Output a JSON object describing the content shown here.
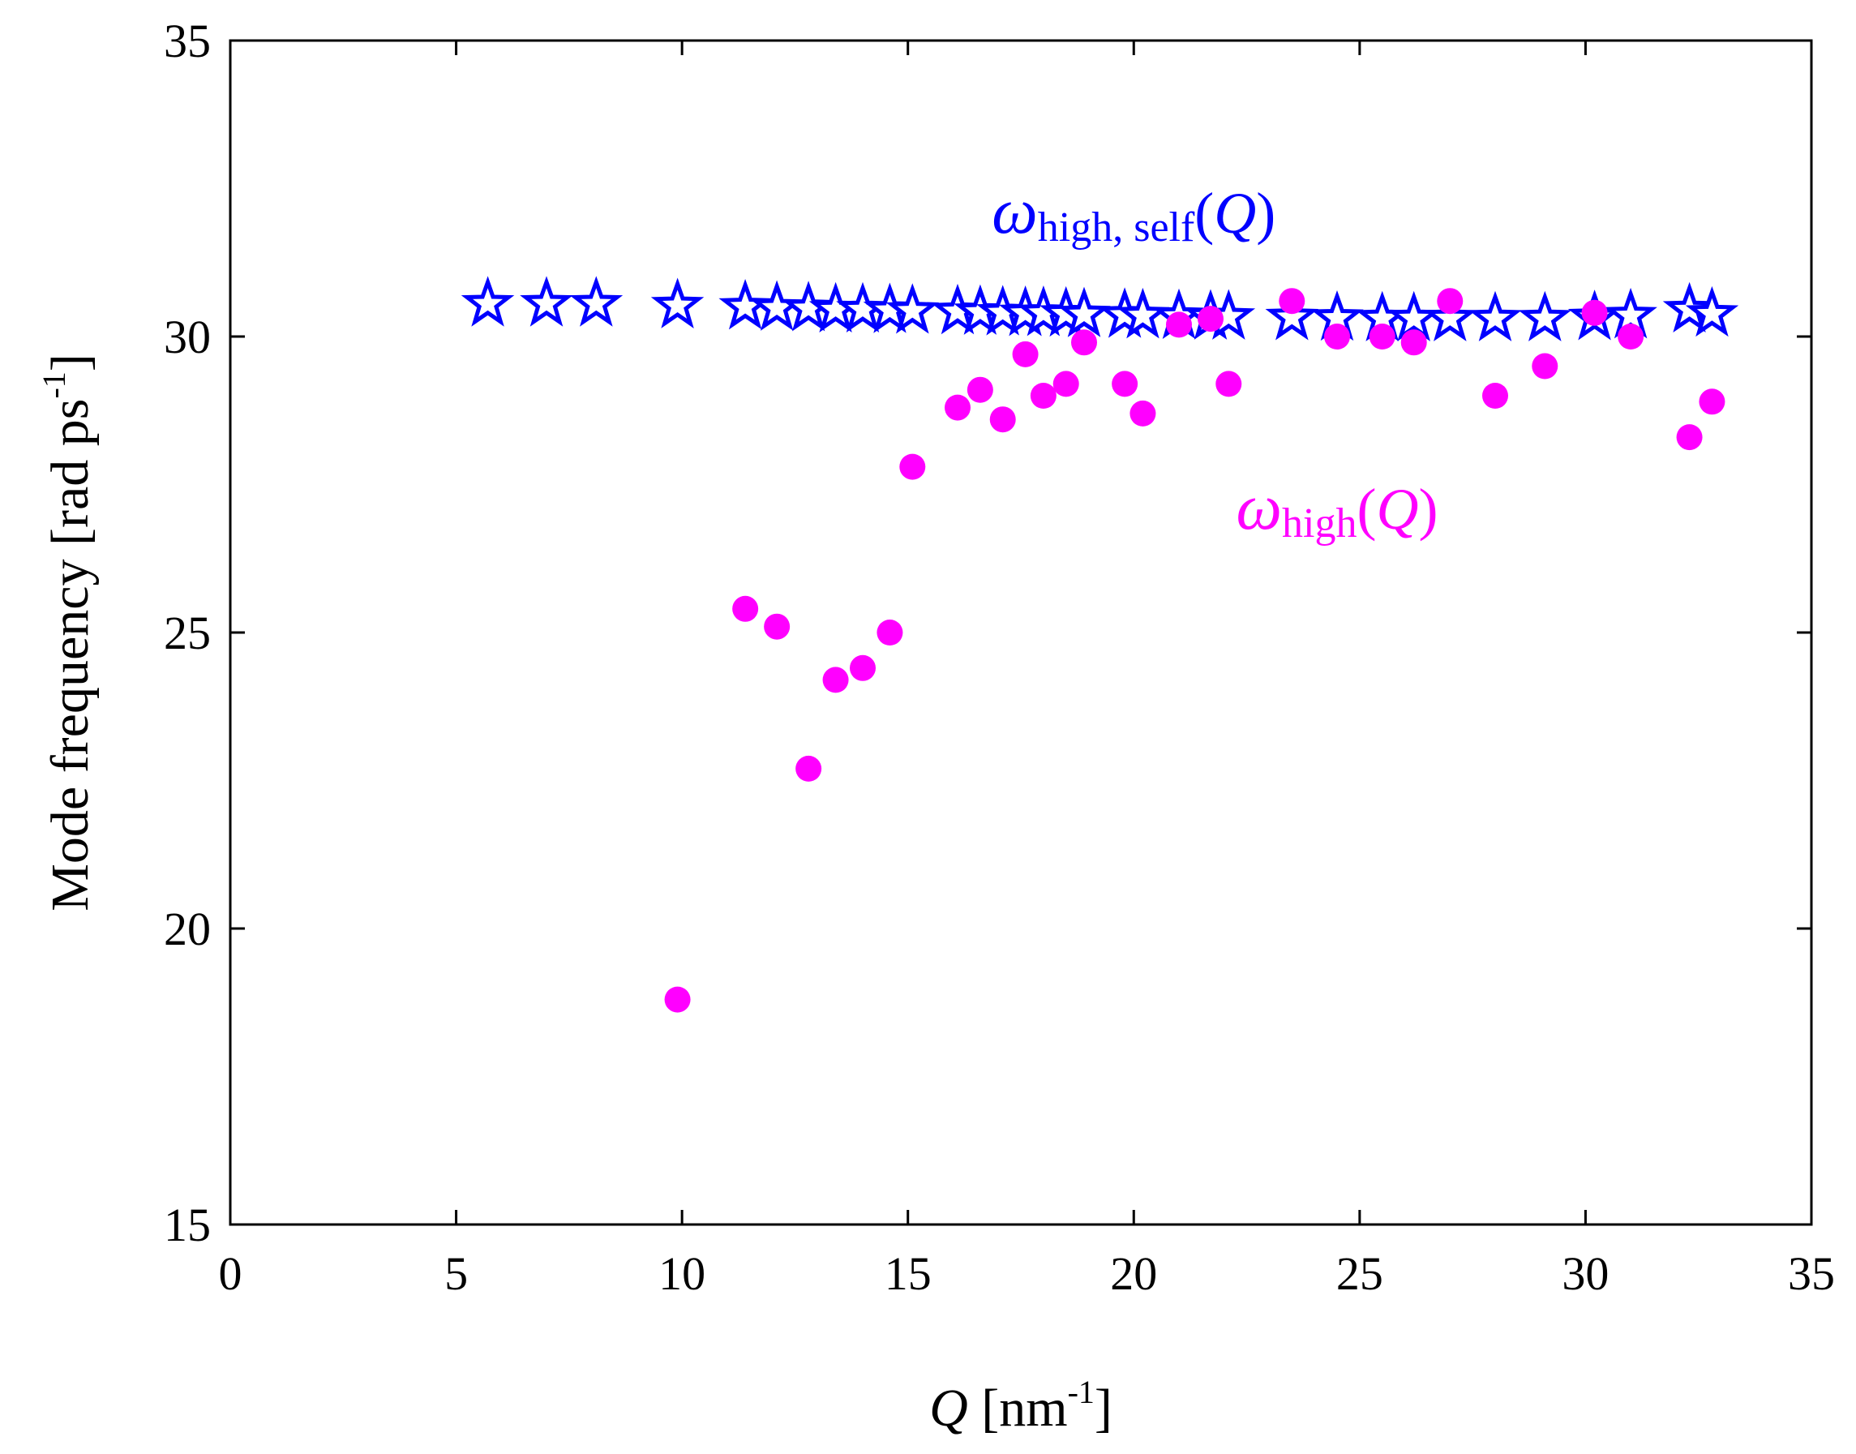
{
  "chart_data": {
    "type": "scatter",
    "title": "",
    "xlabel": {
      "var": "Q",
      "unit": "[nm",
      "exp": "-1",
      "close": "]"
    },
    "ylabel": {
      "text": "Mode frequency  [rad ps",
      "exp": "-1",
      "close": "]"
    },
    "xlim": [
      0,
      35
    ],
    "ylim": [
      15,
      35
    ],
    "xticks": [
      0,
      5,
      10,
      15,
      20,
      25,
      30,
      35
    ],
    "yticks": [
      15,
      20,
      25,
      30,
      35
    ],
    "grid": false,
    "colors": {
      "self": "#0000FF",
      "high": "#FF00FF",
      "axes": "#000000"
    },
    "series": [
      {
        "name": "omega_high_self",
        "marker": "open-star",
        "color": "#0000FF",
        "x": [
          5.7,
          7.0,
          8.1,
          9.9,
          11.4,
          12.1,
          12.8,
          13.4,
          14.0,
          14.6,
          15.1,
          16.1,
          16.6,
          17.1,
          17.6,
          18.0,
          18.5,
          18.9,
          19.8,
          20.2,
          21.0,
          21.7,
          22.1,
          23.5,
          24.5,
          25.5,
          26.2,
          27.0,
          28.0,
          29.1,
          30.2,
          31.0,
          32.3,
          32.8
        ],
        "y": [
          30.55,
          30.55,
          30.55,
          30.52,
          30.5,
          30.48,
          30.47,
          30.45,
          30.45,
          30.44,
          30.43,
          30.42,
          30.41,
          30.4,
          30.39,
          30.39,
          30.38,
          30.37,
          30.36,
          30.35,
          30.34,
          30.33,
          30.33,
          30.32,
          30.31,
          30.3,
          30.3,
          30.3,
          30.3,
          30.3,
          30.32,
          30.35,
          30.45,
          30.38
        ]
      },
      {
        "name": "omega_high",
        "marker": "filled-circle",
        "color": "#FF00FF",
        "x": [
          9.9,
          11.4,
          12.1,
          12.8,
          13.4,
          14.0,
          14.6,
          15.1,
          16.1,
          16.6,
          17.1,
          17.6,
          18.0,
          18.5,
          18.9,
          19.8,
          20.2,
          21.0,
          21.7,
          22.1,
          23.5,
          24.5,
          25.5,
          26.2,
          27.0,
          28.0,
          29.1,
          30.2,
          31.0,
          32.3,
          32.8
        ],
        "y": [
          18.8,
          25.4,
          25.1,
          22.7,
          24.2,
          24.4,
          25.0,
          27.8,
          28.8,
          29.1,
          28.6,
          29.7,
          29.0,
          29.2,
          29.9,
          29.2,
          28.7,
          30.2,
          30.3,
          29.2,
          30.6,
          30.0,
          30.0,
          29.9,
          30.6,
          29.0,
          29.5,
          30.4,
          30.0,
          28.3,
          28.9
        ]
      }
    ],
    "annotations": [
      {
        "id": "self",
        "symbol": "ω",
        "sub": "high, self",
        "arg": "(",
        "var": "Q",
        "close": ")",
        "color": "#0000FF",
        "at": [
          20.0,
          32.0
        ]
      },
      {
        "id": "high",
        "symbol": "ω",
        "sub": "high",
        "arg": "(",
        "var": "Q",
        "close": ")",
        "color": "#FF00FF",
        "at": [
          24.5,
          27.0
        ]
      }
    ]
  }
}
